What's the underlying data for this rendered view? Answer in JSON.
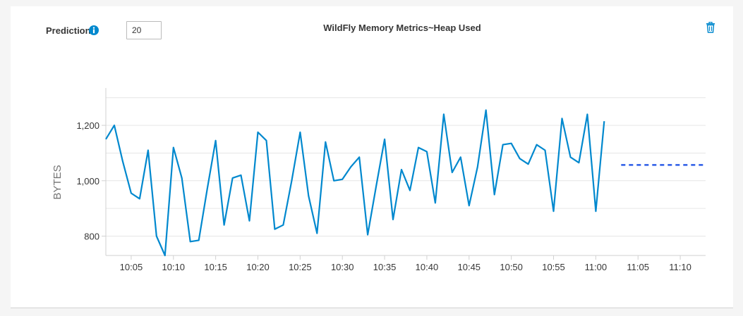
{
  "widget": {
    "prediction_label": "Prediction",
    "prediction_value": "20",
    "info_icon": "info-circle-icon",
    "delete_icon": "trash-icon",
    "accent_color": "#0088ce"
  },
  "chart_data": {
    "type": "line",
    "title": "WildFly Memory Metrics~Heap Used",
    "xlabel": "",
    "ylabel": "BYTES",
    "ylim": [
      730,
      1335
    ],
    "xlim": [
      "10:02",
      "11:13"
    ],
    "y_ticks": [
      800,
      1000,
      1200
    ],
    "y_tick_labels": [
      "800",
      "1,000",
      "1,200"
    ],
    "x_ticks": [
      "10:05",
      "10:10",
      "10:15",
      "10:20",
      "10:25",
      "10:30",
      "10:35",
      "10:40",
      "10:45",
      "10:50",
      "10:55",
      "11:00",
      "11:05",
      "11:10"
    ],
    "grid": true,
    "series": [
      {
        "color": "#0088ce",
        "style": "solid",
        "x": [
          "10:02",
          "10:03",
          "10:04",
          "10:05",
          "10:06",
          "10:07",
          "10:08",
          "10:09",
          "10:10",
          "10:11",
          "10:12",
          "10:13",
          "10:14",
          "10:15",
          "10:16",
          "10:17",
          "10:18",
          "10:19",
          "10:20",
          "10:21",
          "10:22",
          "10:23",
          "10:24",
          "10:25",
          "10:26",
          "10:27",
          "10:28",
          "10:29",
          "10:30",
          "10:31",
          "10:32",
          "10:33",
          "10:34",
          "10:35",
          "10:36",
          "10:37",
          "10:38",
          "10:39",
          "10:40",
          "10:41",
          "10:42",
          "10:43",
          "10:44",
          "10:45",
          "10:46",
          "10:47",
          "10:48",
          "10:49",
          "10:50",
          "10:51",
          "10:52",
          "10:53",
          "10:54",
          "10:55",
          "10:56",
          "10:57",
          "10:58",
          "10:59",
          "11:00",
          "11:01"
        ],
        "values": [
          1150,
          1200,
          1070,
          955,
          935,
          1110,
          800,
          730,
          1120,
          1010,
          780,
          785,
          970,
          1145,
          840,
          1010,
          1020,
          855,
          1175,
          1145,
          825,
          840,
          1000,
          1175,
          945,
          810,
          1140,
          1000,
          1005,
          1050,
          1085,
          805,
          980,
          1150,
          860,
          1040,
          965,
          1120,
          1105,
          920,
          1240,
          1030,
          1085,
          910,
          1050,
          1255,
          950,
          1130,
          1135,
          1080,
          1060,
          1130,
          1110,
          890,
          1225,
          1085,
          1065,
          1240,
          890,
          1215
        ]
      },
      {
        "color": "#2b5ce7",
        "style": "dashed",
        "x": [
          "11:03",
          "11:13"
        ],
        "values": [
          1057,
          1057
        ]
      }
    ]
  }
}
